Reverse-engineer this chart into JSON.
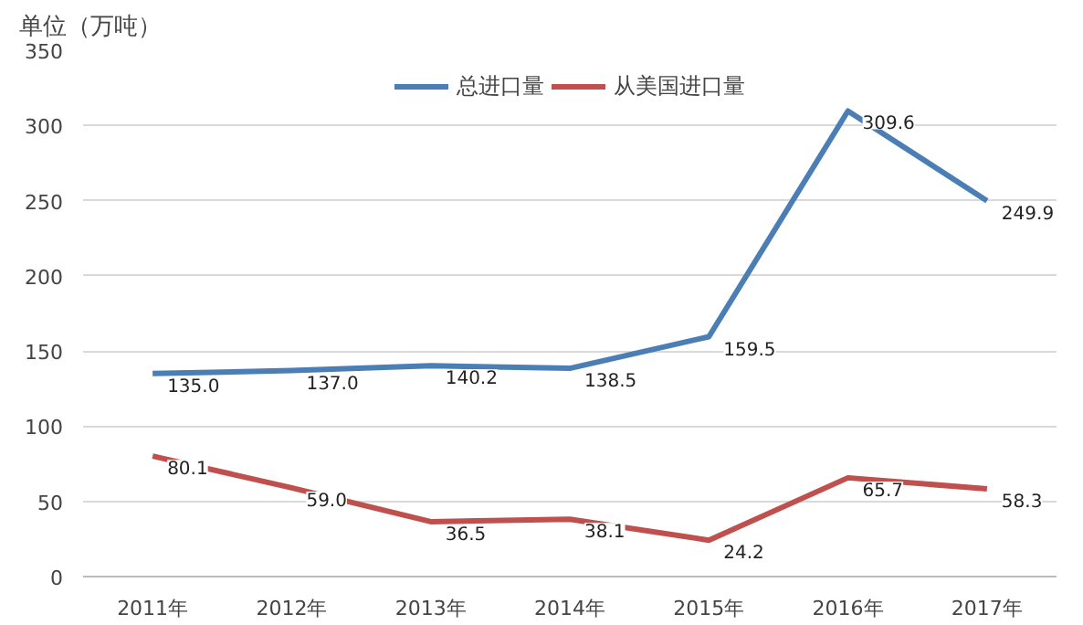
{
  "chart_data": {
    "type": "line",
    "ylabel": "单位（万吨）",
    "categories": [
      "2011年",
      "2012年",
      "2013年",
      "2014年",
      "2015年",
      "2016年",
      "2017年"
    ],
    "series": [
      {
        "name": "总进口量",
        "color": "#4a7eb5",
        "values": [
          135.0,
          137.0,
          140.2,
          138.5,
          159.5,
          309.6,
          249.9
        ],
        "value_labels": [
          "135.0",
          "137.0",
          "140.2",
          "138.5",
          "159.5",
          "309.6",
          "249.9"
        ]
      },
      {
        "name": "从美国进口量",
        "color": "#c0504d",
        "values": [
          80.1,
          59.0,
          36.5,
          38.1,
          24.2,
          65.7,
          58.3
        ],
        "value_labels": [
          "80.1",
          "59.0",
          "36.5",
          "38.1",
          "24.2",
          "65.7",
          "58.3"
        ]
      }
    ],
    "ylim": [
      0,
      350
    ],
    "yticks": [
      0,
      50,
      100,
      150,
      200,
      250,
      300,
      350
    ],
    "grid": "y",
    "legend": "top",
    "marker": "none",
    "line_style": "solid"
  }
}
